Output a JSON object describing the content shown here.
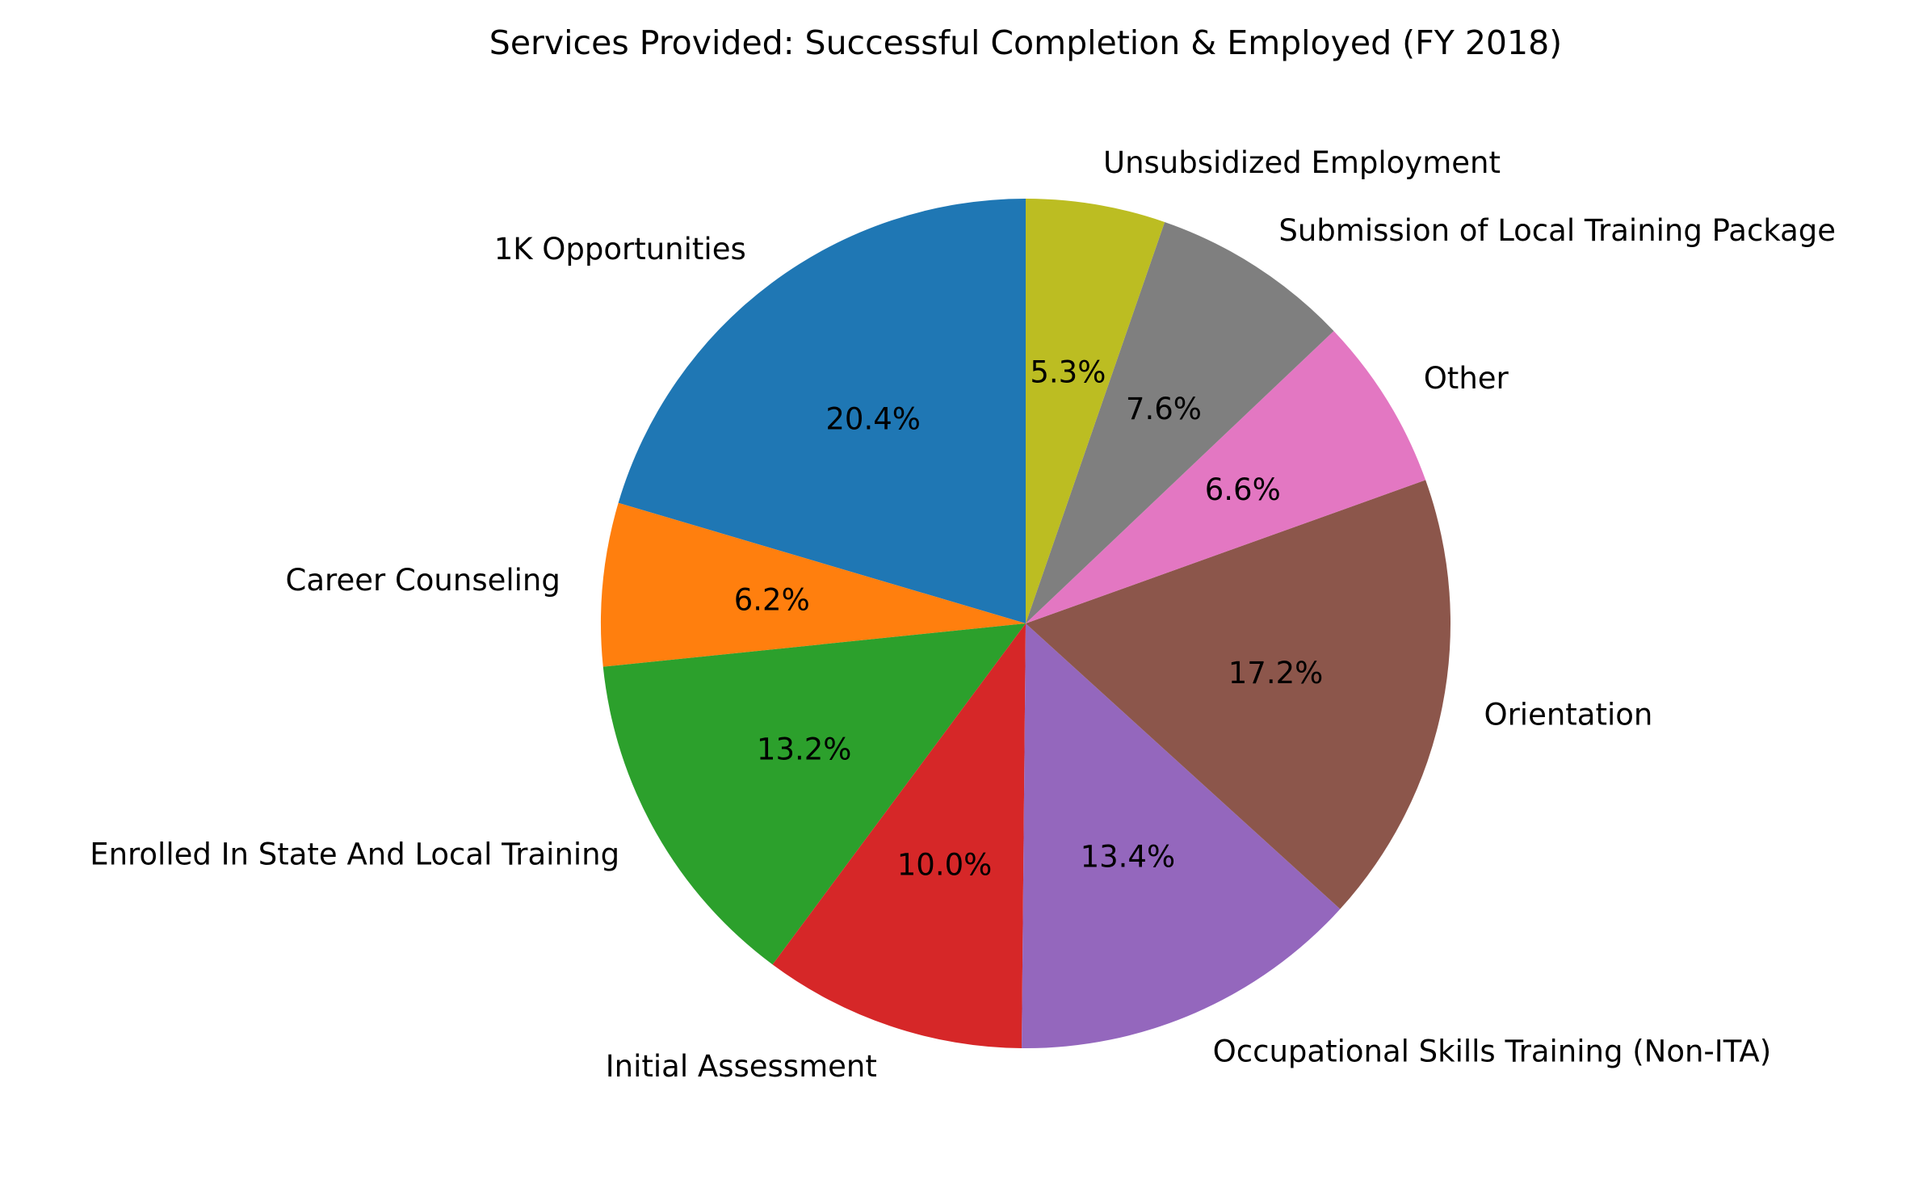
{
  "chart_data": {
    "type": "pie",
    "title": "Services Provided: Successful Completion & Employed (FY 2018)",
    "start_angle_deg": 90,
    "direction": "counterclockwise",
    "slices": [
      {
        "label": "1K Opportunities",
        "value": 20.4,
        "pct_label": "20.4%",
        "color": "#1f77b4"
      },
      {
        "label": "Career Counseling",
        "value": 6.2,
        "pct_label": "6.2%",
        "color": "#ff7f0e"
      },
      {
        "label": "Enrolled In State And Local Training",
        "value": 13.2,
        "pct_label": "13.2%",
        "color": "#2ca02c"
      },
      {
        "label": "Initial Assessment",
        "value": 10.0,
        "pct_label": "10.0%",
        "color": "#d62728"
      },
      {
        "label": "Occupational Skills Training (Non-ITA)",
        "value": 13.4,
        "pct_label": "13.4%",
        "color": "#9467bd"
      },
      {
        "label": "Orientation",
        "value": 17.2,
        "pct_label": "17.2%",
        "color": "#8c564b"
      },
      {
        "label": "Other",
        "value": 6.6,
        "pct_label": "6.6%",
        "color": "#e377c2"
      },
      {
        "label": "Submission of Local Training Package",
        "value": 7.6,
        "pct_label": "7.6%",
        "color": "#7f7f7f"
      },
      {
        "label": "Unsubsidized Employment",
        "value": 5.3,
        "pct_label": "5.3%",
        "color": "#bcbd22"
      }
    ]
  }
}
